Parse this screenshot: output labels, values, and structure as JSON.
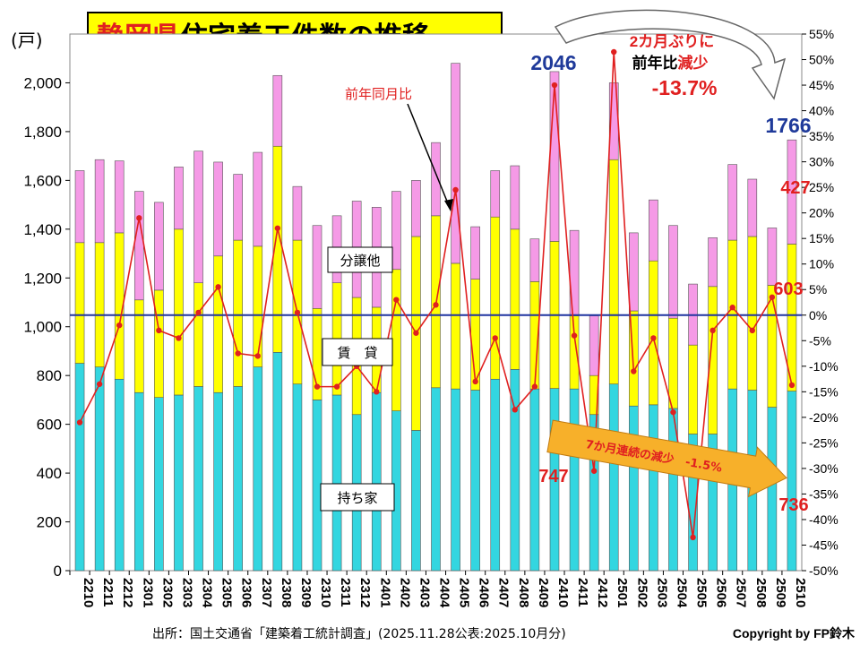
{
  "chart_data": {
    "type": "bar",
    "title": "静岡県住宅着工件数の推移",
    "ylabel": "(戸)",
    "ylim": [
      0,
      2200
    ],
    "y_ticks": [
      0,
      200,
      400,
      600,
      800,
      "1,000",
      "1,200",
      "1,400",
      "1,600",
      "1,800",
      "2,000"
    ],
    "y2lim": [
      -50,
      55
    ],
    "y2_ticks": [
      "55%",
      "50%",
      "45%",
      "40%",
      "35%",
      "30%",
      "25%",
      "20%",
      "15%",
      "10%",
      "5%",
      "0%",
      "-5%",
      "-10%",
      "-15%",
      "-20%",
      "-25%",
      "-30%",
      "-35%",
      "-40%",
      "-45%",
      "-50%"
    ],
    "categories": [
      "2210",
      "2211",
      "2212",
      "2301",
      "2302",
      "2303",
      "2304",
      "2305",
      "2306",
      "2307",
      "2308",
      "2309",
      "2310",
      "2311",
      "2312",
      "2401",
      "2402",
      "2403",
      "2404",
      "2405",
      "2406",
      "2407",
      "2408",
      "2409",
      "2410",
      "2411",
      "2412",
      "2501",
      "2502",
      "2503",
      "2504",
      "2505",
      "2506",
      "2507",
      "2508",
      "2509",
      "2510"
    ],
    "series": [
      {
        "name": "持ち家",
        "color": "#33d6e0",
        "values": [
          850,
          835,
          785,
          730,
          710,
          720,
          755,
          730,
          755,
          835,
          895,
          765,
          700,
          720,
          640,
          730,
          655,
          575,
          750,
          745,
          740,
          785,
          825,
          745,
          747,
          745,
          640,
          765,
          675,
          680,
          665,
          560,
          560,
          745,
          740,
          670,
          736
        ]
      },
      {
        "name": "賃　貸",
        "color": "#ffff00",
        "values": [
          495,
          510,
          600,
          380,
          440,
          680,
          425,
          560,
          600,
          495,
          845,
          590,
          375,
          460,
          480,
          350,
          580,
          795,
          705,
          515,
          455,
          665,
          575,
          440,
          603,
          300,
          160,
          920,
          390,
          590,
          370,
          365,
          605,
          610,
          630,
          500,
          603
        ]
      },
      {
        "name": "分譲他",
        "color": "#f59ae6",
        "values": [
          295,
          340,
          295,
          445,
          360,
          255,
          540,
          385,
          270,
          385,
          290,
          220,
          340,
          275,
          395,
          410,
          320,
          230,
          300,
          820,
          215,
          190,
          260,
          175,
          696,
          350,
          245,
          315,
          320,
          250,
          380,
          250,
          200,
          310,
          235,
          235,
          427
        ]
      },
      {
        "name": "前年同月比",
        "color": "#e02020",
        "values": [
          -21,
          -13.5,
          -2,
          19,
          -3,
          -4.5,
          0.5,
          5.5,
          -7.5,
          -8,
          17,
          0.5,
          -14,
          -14,
          -10,
          -15,
          3,
          -3.5,
          2,
          24.5,
          -13,
          -4.5,
          -18.5,
          -14,
          45,
          -4,
          -30.5,
          51.5,
          -11,
          -4.5,
          -19,
          -43.5,
          -3,
          1.5,
          -3,
          3.5,
          -13.7
        ]
      }
    ],
    "annotations": {
      "total_2410": "2046",
      "total_2510": "1766",
      "bunjo_2510": "427",
      "chintai_2510": "603",
      "mochiie_2410": "747",
      "mochiie_2510": "736",
      "yoy_label": "前年同月比",
      "decline_line1": "2カ月ぶりに",
      "decline_line2a": "前年比",
      "decline_line2b": "減少",
      "decline_value": "-13.7%",
      "streak_note": "7か月連続の減少　-1.5%"
    },
    "source": "出所：国土交通省「建築着工統計調査」(2025.11.28公表:2025.10月分)",
    "copyright": "Copyright by FP鈴木"
  }
}
